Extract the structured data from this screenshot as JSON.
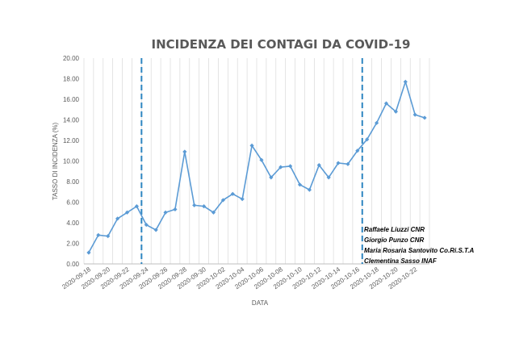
{
  "chart_data": {
    "type": "line",
    "title": "INCIDENZA DEI CONTAGI DA COVID-19",
    "xlabel": "DATA",
    "ylabel": "TASSO DI INCIDENZA (%)",
    "ylim": [
      0,
      20
    ],
    "yticks": [
      "0.00",
      "2.00",
      "4.00",
      "6.00",
      "8.00",
      "10.00",
      "12.00",
      "14.00",
      "16.00",
      "18.00",
      "20.00"
    ],
    "grid": "vertical",
    "x": [
      "2020-09-18",
      "2020-09-19",
      "2020-09-20",
      "2020-09-21",
      "2020-09-22",
      "2020-09-23",
      "2020-09-24",
      "2020-09-25",
      "2020-09-26",
      "2020-09-27",
      "2020-09-28",
      "2020-09-29",
      "2020-09-30",
      "2020-10-01",
      "2020-10-02",
      "2020-10-03",
      "2020-10-04",
      "2020-10-05",
      "2020-10-06",
      "2020-10-07",
      "2020-10-08",
      "2020-10-09",
      "2020-10-10",
      "2020-10-11",
      "2020-10-12",
      "2020-10-13",
      "2020-10-14",
      "2020-10-15",
      "2020-10-16",
      "2020-10-17",
      "2020-10-18",
      "2020-10-19",
      "2020-10-20",
      "2020-10-21",
      "2020-10-22",
      "2020-10-23"
    ],
    "xtick_labels": [
      "2020-09-18",
      "2020-09-20",
      "2020-09-22",
      "2020-09-24",
      "2020-09-26",
      "2020-09-28",
      "2020-09-30",
      "2020-10-02",
      "2020-10-04",
      "2020-10-06",
      "2020-10-08",
      "2020-10-10",
      "2020-10-12",
      "2020-10-14",
      "2020-10-16",
      "2020-10-18",
      "2020-10-20",
      "2020-10-22"
    ],
    "series": [
      {
        "values": [
          1.1,
          2.8,
          2.7,
          4.4,
          5.0,
          5.6,
          3.8,
          3.3,
          5.0,
          5.3,
          10.9,
          5.7,
          5.6,
          5.0,
          6.2,
          6.8,
          6.3,
          11.5,
          10.1,
          8.4,
          9.4,
          9.5,
          7.7,
          7.2,
          9.6,
          8.4,
          9.8,
          9.7,
          11.0,
          12.1,
          13.7,
          15.6,
          14.8,
          17.7,
          14.5,
          14.2
        ],
        "color": "#5b9bd5"
      }
    ],
    "vlines": [
      {
        "x": "2020-09-24",
        "color": "#2e86c1",
        "style": "dashed"
      },
      {
        "x": "2020-10-17",
        "color": "#2e86c1",
        "style": "dashed"
      }
    ],
    "annotations": [
      "Raffaele Liuzzi CNR",
      "Giorgio Punzo CNR",
      "Maria Rosaria Santovito Co.Ri.S.T.A",
      "Clementina Sasso INAF"
    ]
  }
}
